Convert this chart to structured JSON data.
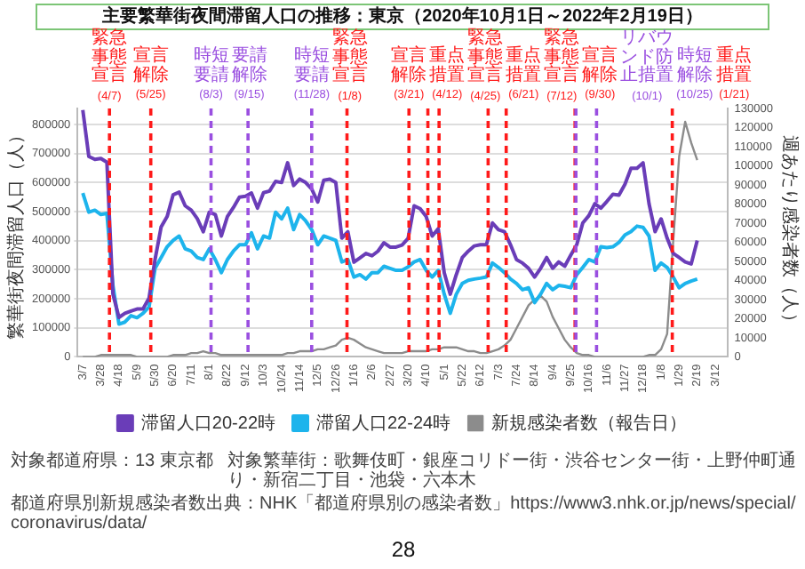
{
  "chart_data": {
    "type": "line",
    "title": "主要繁華街夜間滞留人口の推移：東京（2020年10月1日～2022年2月19日）",
    "ylabel": "繁華街夜間滞留人口（人）",
    "y2label": "週あたり感染者数（人）",
    "x": [
      "2020-03-07",
      "2020-03-14",
      "2020-03-21",
      "2020-03-28",
      "2020-04-04",
      "2020-04-11",
      "2020-04-18",
      "2020-04-25",
      "2020-05-02",
      "2020-05-09",
      "2020-05-16",
      "2020-05-23",
      "2020-05-30",
      "2020-06-06",
      "2020-06-13",
      "2020-06-20",
      "2020-06-27",
      "2020-07-04",
      "2020-07-11",
      "2020-07-18",
      "2020-07-25",
      "2020-08-01",
      "2020-08-08",
      "2020-08-15",
      "2020-08-22",
      "2020-08-29",
      "2020-09-05",
      "2020-09-12",
      "2020-09-19",
      "2020-09-26",
      "2020-10-03",
      "2020-10-10",
      "2020-10-17",
      "2020-10-24",
      "2020-10-31",
      "2020-11-07",
      "2020-11-14",
      "2020-11-21",
      "2020-11-28",
      "2020-12-05",
      "2020-12-12",
      "2020-12-19",
      "2020-12-26",
      "2021-01-02",
      "2021-01-09",
      "2021-01-16",
      "2021-01-23",
      "2021-01-30",
      "2021-02-06",
      "2021-02-13",
      "2021-02-20",
      "2021-02-27",
      "2021-03-06",
      "2021-03-13",
      "2021-03-20",
      "2021-03-27",
      "2021-04-03",
      "2021-04-10",
      "2021-04-17",
      "2021-04-24",
      "2021-05-01",
      "2021-05-08",
      "2021-05-15",
      "2021-05-22",
      "2021-05-29",
      "2021-06-05",
      "2021-06-12",
      "2021-06-19",
      "2021-06-26",
      "2021-07-03",
      "2021-07-10",
      "2021-07-17",
      "2021-07-24",
      "2021-07-31",
      "2021-08-07",
      "2021-08-14",
      "2021-08-21",
      "2021-08-28",
      "2021-09-04",
      "2021-09-11",
      "2021-09-18",
      "2021-09-25",
      "2021-10-02",
      "2021-10-09",
      "2021-10-16",
      "2021-10-23",
      "2021-10-30",
      "2021-11-06",
      "2021-11-13",
      "2021-11-20",
      "2021-11-27",
      "2021-12-04",
      "2021-12-11",
      "2021-12-18",
      "2021-12-25",
      "2022-01-01",
      "2022-01-08",
      "2022-01-15",
      "2022-01-22",
      "2022-01-29",
      "2022-02-05",
      "2022-02-12",
      "2022-02-19"
    ],
    "series": [
      {
        "name": "滞留人口20-22時",
        "color": "#6a3db8",
        "values": [
          850000,
          690000,
          680000,
          683000,
          670000,
          216000,
          136000,
          150000,
          158000,
          165000,
          165000,
          203000,
          336000,
          447000,
          483000,
          558000,
          567000,
          520000,
          505000,
          476000,
          431000,
          498000,
          490000,
          416000,
          483000,
          514000,
          550000,
          553000,
          564000,
          512000,
          565000,
          571000,
          604000,
          600000,
          668000,
          590000,
          612000,
          600000,
          578000,
          533000,
          608000,
          612000,
          600000,
          409000,
          431000,
          326000,
          341000,
          356000,
          348000,
          364000,
          393000,
          378000,
          378000,
          385000,
          408000,
          520000,
          510000,
          483000,
          416000,
          441000,
          290000,
          216000,
          283000,
          342000,
          364000,
          382000,
          386000,
          386000,
          461000,
          438000,
          431000,
          386000,
          335000,
          323000,
          305000,
          275000,
          305000,
          342000,
          305000,
          327000,
          312000,
          350000,
          386000,
          461000,
          486000,
          527000,
          512000,
          535000,
          560000,
          557000,
          594000,
          649000,
          649000,
          668000,
          527000,
          431000,
          475000,
          409000,
          357000,
          342000,
          327000,
          320000,
          401000
        ]
      },
      {
        "name": "滞留人口22-24時",
        "color": "#1db4ec",
        "values": [
          564000,
          498000,
          505000,
          490000,
          494000,
          246000,
          113000,
          120000,
          142000,
          135000,
          150000,
          172000,
          305000,
          342000,
          379000,
          401000,
          416000,
          372000,
          364000,
          342000,
          335000,
          372000,
          335000,
          290000,
          335000,
          364000,
          386000,
          386000,
          427000,
          372000,
          416000,
          409000,
          498000,
          475000,
          512000,
          438000,
          490000,
          468000,
          438000,
          386000,
          416000,
          409000,
          401000,
          327000,
          335000,
          275000,
          283000,
          268000,
          290000,
          290000,
          312000,
          305000,
          298000,
          298000,
          310000,
          327000,
          335000,
          298000,
          275000,
          298000,
          216000,
          150000,
          216000,
          253000,
          264000,
          268000,
          271000,
          275000,
          323000,
          308000,
          290000,
          268000,
          253000,
          231000,
          238000,
          187000,
          216000,
          253000,
          231000,
          246000,
          243000,
          238000,
          283000,
          308000,
          335000,
          327000,
          379000,
          376000,
          379000,
          394000,
          420000,
          431000,
          450000,
          446000,
          416000,
          298000,
          323000,
          308000,
          275000,
          238000,
          253000,
          261000,
          268000
        ]
      },
      {
        "name": "新規感染者数（報告日）",
        "color": "#8c8c8c",
        "axis": "y2",
        "values": [
          0,
          0,
          0,
          1000,
          1000,
          1000,
          1000,
          1000,
          1000,
          0,
          0,
          0,
          0,
          0,
          0,
          1000,
          1000,
          1000,
          2000,
          2000,
          3000,
          2000,
          2000,
          1000,
          1000,
          1000,
          1000,
          1000,
          1000,
          1000,
          1000,
          1000,
          1000,
          1000,
          2000,
          2000,
          3000,
          3000,
          3000,
          4000,
          4000,
          5000,
          6000,
          9000,
          10000,
          9000,
          7000,
          5000,
          4000,
          3000,
          2000,
          2000,
          2000,
          2000,
          3000,
          3000,
          3000,
          3000,
          4000,
          4000,
          5000,
          5000,
          5000,
          4000,
          3000,
          3000,
          2000,
          2000,
          3000,
          4000,
          6000,
          9000,
          15000,
          21000,
          27000,
          30000,
          32000,
          29000,
          21000,
          15000,
          9000,
          5000,
          2000,
          1000,
          1000,
          0,
          0,
          0,
          0,
          0,
          0,
          0,
          0,
          0,
          1000,
          1000,
          4000,
          12000,
          60000,
          105000,
          123000,
          112000,
          103000
        ]
      }
    ],
    "xlim": [
      "2020-03-01",
      "2022-03-26"
    ],
    "xticks": [
      {
        "value": "2020-03-07",
        "label": "3/7"
      },
      {
        "value": "2020-03-28",
        "label": "3/28"
      },
      {
        "value": "2020-04-18",
        "label": "4/18"
      },
      {
        "value": "2020-05-09",
        "label": "5/9"
      },
      {
        "value": "2020-05-30",
        "label": "5/30"
      },
      {
        "value": "2020-06-20",
        "label": "6/20"
      },
      {
        "value": "2020-07-11",
        "label": "7/11"
      },
      {
        "value": "2020-08-01",
        "label": "8/1"
      },
      {
        "value": "2020-08-22",
        "label": "8/22"
      },
      {
        "value": "2020-09-12",
        "label": "9/12"
      },
      {
        "value": "2020-10-03",
        "label": "10/3"
      },
      {
        "value": "2020-10-24",
        "label": "10/24"
      },
      {
        "value": "2020-11-14",
        "label": "11/14"
      },
      {
        "value": "2020-12-05",
        "label": "12/5"
      },
      {
        "value": "2020-12-26",
        "label": "12/26"
      },
      {
        "value": "2021-01-16",
        "label": "1/16"
      },
      {
        "value": "2021-02-06",
        "label": "2/6"
      },
      {
        "value": "2021-02-27",
        "label": "2/27"
      },
      {
        "value": "2021-03-20",
        "label": "3/20"
      },
      {
        "value": "2021-04-10",
        "label": "4/10"
      },
      {
        "value": "2021-05-01",
        "label": "5/1"
      },
      {
        "value": "2021-05-22",
        "label": "5/22"
      },
      {
        "value": "2021-06-12",
        "label": "6/12"
      },
      {
        "value": "2021-07-03",
        "label": "7/3"
      },
      {
        "value": "2021-07-24",
        "label": "7/24"
      },
      {
        "value": "2021-08-14",
        "label": "8/14"
      },
      {
        "value": "2021-09-04",
        "label": "9/4"
      },
      {
        "value": "2021-09-25",
        "label": "9/25"
      },
      {
        "value": "2021-10-16",
        "label": "10/16"
      },
      {
        "value": "2021-11-06",
        "label": "11/6"
      },
      {
        "value": "2021-11-27",
        "label": "11/27"
      },
      {
        "value": "2021-12-18",
        "label": "12/18"
      },
      {
        "value": "2022-01-08",
        "label": "1/8"
      },
      {
        "value": "2022-01-29",
        "label": "1/29"
      },
      {
        "value": "2022-02-19",
        "label": "2/19"
      },
      {
        "value": "2022-03-12",
        "label": "3/12"
      }
    ],
    "ylim": [
      0,
      855000
    ],
    "yticks": [
      0,
      100000,
      200000,
      300000,
      400000,
      500000,
      600000,
      700000,
      800000
    ],
    "y2lim": [
      0,
      130000
    ],
    "y2ticks": [
      0,
      10000,
      20000,
      30000,
      40000,
      50000,
      60000,
      70000,
      80000,
      90000,
      100000,
      110000,
      120000,
      130000
    ],
    "ref_lines": [
      {
        "axis": "x",
        "value": "2020-04-07",
        "label": "緊急事態宣言(4/7)",
        "color": "#ff1a1a",
        "line_style": "dashed"
      },
      {
        "axis": "x",
        "value": "2020-05-25",
        "label": "宣言解除(5/25)",
        "color": "#ff1a1a",
        "line_style": "dashed"
      },
      {
        "axis": "x",
        "value": "2020-08-03",
        "label": "時短要請(8/3)",
        "color": "#9a4fe0",
        "line_style": "dashed"
      },
      {
        "axis": "x",
        "value": "2020-09-15",
        "label": "要請解除(9/15)",
        "color": "#9a4fe0",
        "line_style": "dashed"
      },
      {
        "axis": "x",
        "value": "2020-11-28",
        "label": "時短要請(11/28)",
        "color": "#9a4fe0",
        "line_style": "dashed"
      },
      {
        "axis": "x",
        "value": "2021-01-08",
        "label": "緊急事態宣言(1/8)",
        "color": "#ff1a1a",
        "line_style": "dashed"
      },
      {
        "axis": "x",
        "value": "2021-03-21",
        "label": "宣言解除(3/21)",
        "color": "#ff1a1a",
        "line_style": "dashed"
      },
      {
        "axis": "x",
        "value": "2021-04-12",
        "label": "重点措置(4/12)",
        "color": "#ff1a1a",
        "line_style": "dashed"
      },
      {
        "axis": "x",
        "value": "2021-04-25",
        "label": "緊急事態宣言(4/25)",
        "color": "#ff1a1a",
        "line_style": "dashed"
      },
      {
        "axis": "x",
        "value": "2021-06-21",
        "label": "重点措置(6/21)",
        "color": "#ff1a1a",
        "line_style": "dashed"
      },
      {
        "axis": "x",
        "value": "2021-07-12",
        "label": "緊急事態宣言(7/12)",
        "color": "#ff1a1a",
        "line_style": "dashed"
      },
      {
        "axis": "x",
        "value": "2021-09-30",
        "label": "宣言解除(9/30)",
        "color": "#ff1a1a",
        "line_style": "dashed"
      },
      {
        "axis": "x",
        "value": "2021-10-01",
        "label": "リバウンド防止措置(10/1)",
        "color": "#9a4fe0",
        "line_style": "dashed"
      },
      {
        "axis": "x",
        "value": "2021-10-25",
        "label": "時短解除(10/25)",
        "color": "#9a4fe0",
        "line_style": "dashed"
      },
      {
        "axis": "x",
        "value": "2022-01-21",
        "label": "重点措置(1/21)",
        "color": "#ff1a1a",
        "line_style": "dashed"
      }
    ],
    "annotations": [
      "対象都道府県：13 東京都",
      "対象繁華街：歌舞伎町・銀座コリドー街・渋谷センター街・上野仲町通り・新宿二丁目・池袋・六本木",
      "都道府県別新規感染者数出典：NHK「都道府県別の感染者数」https://www3.nhk.or.jp/news/special/coronavirus/data/",
      "28"
    ],
    "grid": "y",
    "legend": "bottom",
    "marker": "none"
  }
}
